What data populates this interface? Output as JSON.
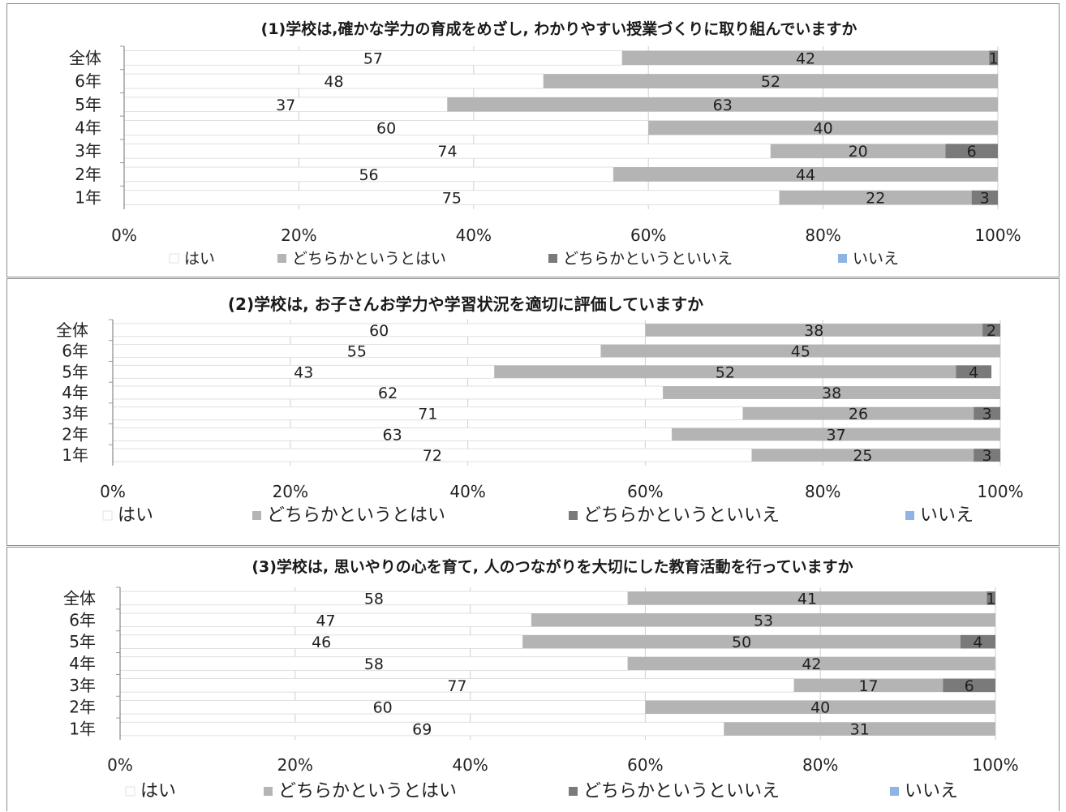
{
  "colors": {
    "hai": "#ffffff",
    "dochira_hai": "#b4b4b4",
    "dochira_iie": "#7a7a7a",
    "iie": "#8eb4e3"
  },
  "chart_data": [
    {
      "type": "bar",
      "orientation": "horizontal",
      "stacked": true,
      "title": "(1)学校は,確かな学力の育成をめざし, わかりやすい授業づくりに取り組んでいますか",
      "categories": [
        "全体",
        "6年",
        "5年",
        "4年",
        "3年",
        "2年",
        "1年"
      ],
      "xticks": [
        "0%",
        "20%",
        "40%",
        "60%",
        "80%",
        "100%"
      ],
      "xlim": [
        0,
        100
      ],
      "legend_position": "bottom",
      "series": [
        {
          "name": "はい",
          "values": [
            57,
            48,
            37,
            60,
            74,
            56,
            75
          ]
        },
        {
          "name": "どちらかというとはい",
          "values": [
            42,
            52,
            63,
            40,
            20,
            44,
            22
          ]
        },
        {
          "name": "どちらかというといいえ",
          "values": [
            1,
            0,
            0,
            0,
            6,
            0,
            3
          ]
        },
        {
          "name": "いいえ",
          "values": [
            0,
            0,
            0,
            0,
            0,
            0,
            0
          ]
        }
      ]
    },
    {
      "type": "bar",
      "orientation": "horizontal",
      "stacked": true,
      "title": "(2)学校は, お子さんお学力や学習状況を適切に評価していますか",
      "categories": [
        "全体",
        "6年",
        "5年",
        "4年",
        "3年",
        "2年",
        "1年"
      ],
      "xticks": [
        "0%",
        "20%",
        "40%",
        "60%",
        "80%",
        "100%"
      ],
      "xlim": [
        0,
        100
      ],
      "legend_position": "bottom",
      "series": [
        {
          "name": "はい",
          "values": [
            60,
            55,
            43,
            62,
            71,
            63,
            72
          ]
        },
        {
          "name": "どちらかというとはい",
          "values": [
            38,
            45,
            52,
            38,
            26,
            37,
            25
          ]
        },
        {
          "name": "どちらかというといいえ",
          "values": [
            2,
            0,
            4,
            0,
            3,
            0,
            3
          ]
        },
        {
          "name": "いいえ",
          "values": [
            0,
            0,
            0,
            0,
            0,
            0,
            0
          ]
        }
      ]
    },
    {
      "type": "bar",
      "orientation": "horizontal",
      "stacked": true,
      "title": "(3)学校は, 思いやりの心を育て, 人のつながりを大切にした教育活動を行っていますか",
      "categories": [
        "全体",
        "6年",
        "5年",
        "4年",
        "3年",
        "2年",
        "1年"
      ],
      "xticks": [
        "0%",
        "20%",
        "40%",
        "60%",
        "80%",
        "100%"
      ],
      "xlim": [
        0,
        100
      ],
      "legend_position": "bottom",
      "series": [
        {
          "name": "はい",
          "values": [
            58,
            47,
            46,
            58,
            77,
            60,
            69
          ]
        },
        {
          "name": "どちらかというとはい",
          "values": [
            41,
            53,
            50,
            42,
            17,
            40,
            31
          ]
        },
        {
          "name": "どちらかというといいえ",
          "values": [
            1,
            0,
            4,
            0,
            6,
            0,
            0
          ]
        },
        {
          "name": "いいえ",
          "values": [
            0,
            0,
            0,
            0,
            0,
            0,
            0
          ]
        }
      ]
    }
  ]
}
